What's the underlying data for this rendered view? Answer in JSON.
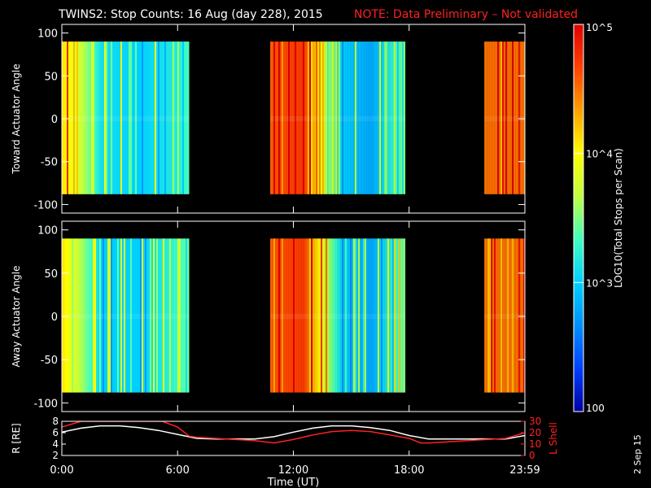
{
  "header": {
    "title": "TWINS2: Stop Counts: 16 Aug (day 228), 2015",
    "note": "NOTE: Data Preliminary – Not validated",
    "note_color": "#ff2020"
  },
  "footer_date": "2 Sep 15",
  "colorbar": {
    "label": "LOG10(Total Stops per Scan)",
    "ticks": [
      "10^5",
      "10^4",
      "10^3",
      "100"
    ],
    "range": [
      100,
      100000
    ],
    "scale": "log",
    "colormap": [
      "#0000a0",
      "#0040ff",
      "#0090ff",
      "#00d0ff",
      "#40ffc0",
      "#c0ff40",
      "#ffff00",
      "#ffa000",
      "#ff4000",
      "#e00000"
    ]
  },
  "chart_data": [
    {
      "type": "heatmap",
      "ylabel": "Toward Actuator Angle",
      "ylim": [
        -110,
        110
      ],
      "yticks": [
        100,
        50,
        0,
        -50,
        -100
      ],
      "angle_range": [
        -88,
        90
      ],
      "xlim_hours": [
        0,
        24
      ],
      "data_intervals_hours": [
        [
          0,
          6.6
        ],
        [
          10.8,
          17.8
        ],
        [
          21.9,
          24
        ]
      ],
      "log_counts_profile": [
        {
          "t": 0.0,
          "v": 4.1
        },
        {
          "t": 1.0,
          "v": 3.7
        },
        {
          "t": 2.0,
          "v": 3.1
        },
        {
          "t": 4.0,
          "v": 3.0
        },
        {
          "t": 6.0,
          "v": 3.2
        },
        {
          "t": 11.0,
          "v": 4.6
        },
        {
          "t": 12.5,
          "v": 4.7
        },
        {
          "t": 14.5,
          "v": 3.0
        },
        {
          "t": 16.0,
          "v": 2.8
        },
        {
          "t": 17.7,
          "v": 3.5
        },
        {
          "t": 22.0,
          "v": 4.5
        },
        {
          "t": 24.0,
          "v": 4.5
        }
      ]
    },
    {
      "type": "heatmap",
      "ylabel": "Away Actuator Angle",
      "ylim": [
        -110,
        110
      ],
      "yticks": [
        100,
        50,
        0,
        -50,
        -100
      ],
      "angle_range": [
        -88,
        90
      ],
      "xlim_hours": [
        0,
        24
      ],
      "data_intervals_hours": [
        [
          0,
          6.6
        ],
        [
          10.8,
          17.8
        ],
        [
          21.9,
          24
        ]
      ],
      "log_counts_profile": [
        {
          "t": 0.0,
          "v": 4.1
        },
        {
          "t": 1.0,
          "v": 3.6
        },
        {
          "t": 2.0,
          "v": 3.0
        },
        {
          "t": 4.0,
          "v": 3.0
        },
        {
          "t": 6.0,
          "v": 3.3
        },
        {
          "t": 11.0,
          "v": 4.6
        },
        {
          "t": 12.5,
          "v": 4.7
        },
        {
          "t": 14.5,
          "v": 3.0
        },
        {
          "t": 16.0,
          "v": 2.8
        },
        {
          "t": 17.7,
          "v": 3.5
        },
        {
          "t": 22.0,
          "v": 4.5
        },
        {
          "t": 24.0,
          "v": 4.5
        }
      ]
    },
    {
      "type": "line",
      "xlabel": "Time (UT)",
      "xticks": [
        "0:00",
        "6:00",
        "12:00",
        "18:00",
        "23:59"
      ],
      "xtick_hours": [
        0,
        6,
        12,
        18,
        24
      ],
      "ylabel": "R [RE]",
      "ylim": [
        2,
        8
      ],
      "yticks": [
        2,
        4,
        6,
        8
      ],
      "y2label": "L Shell",
      "y2lim": [
        0,
        30
      ],
      "y2ticks": [
        0,
        10,
        20,
        30
      ],
      "series": [
        {
          "color": "#ffffff",
          "axis": "left",
          "x": [
            0,
            1,
            2,
            3,
            4,
            5,
            6,
            7,
            8,
            9,
            10,
            11,
            12,
            13,
            14,
            15,
            16,
            17,
            18,
            19,
            20,
            21,
            22,
            23,
            24
          ],
          "y": [
            6.1,
            6.8,
            7.2,
            7.2,
            6.9,
            6.4,
            5.7,
            5.0,
            4.9,
            4.9,
            4.9,
            5.3,
            6.1,
            6.8,
            7.2,
            7.2,
            6.9,
            6.4,
            5.5,
            4.9,
            4.9,
            4.9,
            4.9,
            4.9,
            5.5
          ]
        },
        {
          "color": "#ff2020",
          "axis": "right",
          "x": [
            0,
            1,
            5.2,
            6.0,
            6.6,
            7,
            8,
            9,
            10,
            11,
            12,
            13,
            14,
            15,
            16,
            17,
            18,
            18.6,
            19,
            20,
            21,
            22,
            23,
            24
          ],
          "y": [
            25,
            30,
            30,
            25,
            17,
            16,
            15,
            14,
            13,
            11,
            14,
            18,
            21,
            22,
            21,
            18,
            15,
            11,
            11,
            12,
            13,
            14,
            15,
            20
          ]
        }
      ]
    }
  ]
}
